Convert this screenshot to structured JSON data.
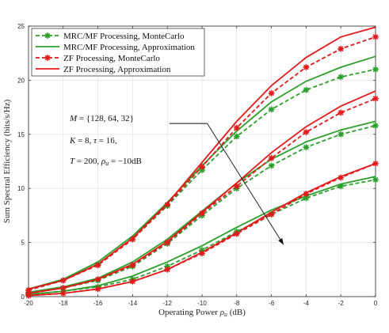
{
  "chart_data": {
    "type": "line",
    "title": "",
    "xlabel": "Operating Power ρu (dB)",
    "ylabel": "Sum Spectral Efficiency (bits/s/Hz)",
    "xlim": [
      -20,
      0
    ],
    "ylim": [
      0,
      25
    ],
    "xticks": [
      "-20",
      "-18",
      "-16",
      "-14",
      "-12",
      "-10",
      "-8",
      "-6",
      "-4",
      "-2",
      "0"
    ],
    "yticks": [
      "0",
      "5",
      "10",
      "15",
      "20",
      "25"
    ],
    "grid": true,
    "legend_position": "top-left",
    "x": [
      -20,
      -18,
      -16,
      -14,
      -12,
      -10,
      -8,
      -6,
      -4,
      -2,
      0
    ],
    "series": [
      {
        "name": "MRC/MF Processing, MonteCarlo",
        "color": "#2ca02c",
        "style": "dashed",
        "marker": "asterisk",
        "curves": [
          [
            0.6,
            1.5,
            3.0,
            5.3,
            8.4,
            11.7,
            14.8,
            17.3,
            19.1,
            20.3,
            21.0
          ],
          [
            0.4,
            0.8,
            1.5,
            2.8,
            4.9,
            7.5,
            10.0,
            12.1,
            13.8,
            15.0,
            15.8
          ],
          [
            0.2,
            0.5,
            0.9,
            1.6,
            2.8,
            4.3,
            6.0,
            7.6,
            9.1,
            10.2,
            10.8
          ]
        ]
      },
      {
        "name": "MRC/MF Processing, Approximation",
        "color": "#2ca02c",
        "style": "solid",
        "marker": "none",
        "curves": [
          [
            0.7,
            1.6,
            3.2,
            5.6,
            8.7,
            12.1,
            15.3,
            18.0,
            19.9,
            21.2,
            22.2
          ],
          [
            0.4,
            0.9,
            1.7,
            3.2,
            5.3,
            7.9,
            10.5,
            12.7,
            14.3,
            15.4,
            16.2
          ],
          [
            0.2,
            0.5,
            1.0,
            1.9,
            3.2,
            4.7,
            6.4,
            8.0,
            9.3,
            10.4,
            11.1
          ]
        ]
      },
      {
        "name": "ZF Processing, MonteCarlo",
        "color": "#e31a1c",
        "style": "dashed",
        "marker": "asterisk",
        "curves": [
          [
            0.6,
            1.5,
            2.9,
            5.3,
            8.5,
            12.0,
            15.6,
            18.8,
            21.2,
            22.9,
            24.0
          ],
          [
            0.3,
            0.8,
            1.6,
            2.9,
            5.0,
            7.7,
            10.2,
            12.8,
            15.2,
            17.0,
            18.3
          ],
          [
            0.1,
            0.3,
            0.7,
            1.4,
            2.5,
            4.0,
            5.8,
            7.6,
            9.5,
            11.0,
            12.3
          ]
        ]
      },
      {
        "name": "ZF Processing, Approximation",
        "color": "#e31a1c",
        "style": "solid",
        "marker": "none",
        "curves": [
          [
            0.7,
            1.5,
            3.0,
            5.4,
            8.6,
            12.4,
            16.2,
            19.5,
            22.1,
            24.0,
            24.9
          ],
          [
            0.3,
            0.8,
            1.6,
            3.0,
            5.1,
            7.8,
            10.5,
            13.3,
            15.7,
            17.6,
            19.0
          ],
          [
            0.1,
            0.3,
            0.7,
            1.4,
            2.5,
            4.1,
            5.9,
            7.8,
            9.6,
            11.1,
            12.3
          ]
        ]
      }
    ],
    "annotations": [
      {
        "id": "m",
        "text": "M = {128, 64, 32}"
      },
      {
        "id": "k",
        "text": "K = 8,    τ = 16,"
      },
      {
        "id": "t",
        "text": "T = 200,  ρu = −10dB"
      }
    ],
    "arrow": {
      "from": [
        -9.7,
        16.0
      ],
      "to": [
        -5.3,
        4.8
      ]
    }
  }
}
